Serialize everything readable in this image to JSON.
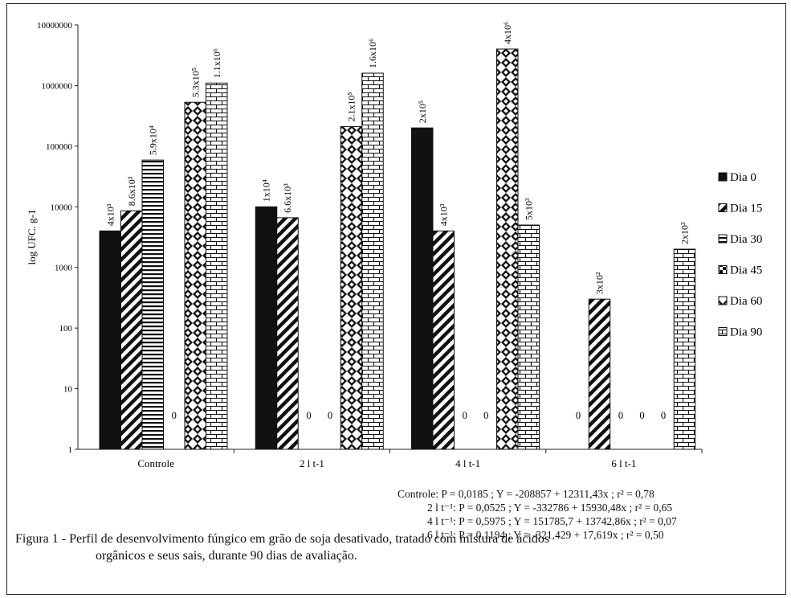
{
  "chart_data": {
    "type": "bar",
    "scale": "log",
    "ylabel": "log UFC. g-1",
    "yticks": [
      "1",
      "10",
      "100",
      "1000",
      "10000",
      "100000",
      "1000000",
      "10000000"
    ],
    "ylim": [
      1,
      10000000
    ],
    "categories": [
      "Controle",
      "2 l t-1",
      "4 l t-1",
      "6 l t-1"
    ],
    "series": [
      {
        "name": "Dia 0",
        "pattern": "solid",
        "values": [
          4000,
          10000,
          200000,
          0
        ],
        "labels": [
          "4x10³",
          "1x10⁴",
          "2x10⁵",
          "0"
        ]
      },
      {
        "name": "Dia 15",
        "pattern": "diag",
        "values": [
          8600,
          6600,
          4000,
          300
        ],
        "labels": [
          "8.6x10³",
          "6.6x10³",
          "4x10³",
          "3x10²"
        ]
      },
      {
        "name": "Dia 30",
        "pattern": "hlines",
        "values": [
          59000,
          0,
          0,
          0
        ],
        "labels": [
          "5.9x10⁴",
          "0",
          "0",
          "0"
        ]
      },
      {
        "name": "Dia 45",
        "pattern": "check",
        "values": [
          0,
          0,
          0,
          0
        ],
        "labels": [
          "0",
          "0",
          "0",
          "0"
        ]
      },
      {
        "name": "Dia 60",
        "pattern": "diamond",
        "values": [
          530000,
          210000,
          4000000,
          0
        ],
        "labels": [
          "5.3x10⁵",
          "2.1x10⁵",
          "4x10⁶",
          "0"
        ]
      },
      {
        "name": "Dia 90",
        "pattern": "brick",
        "values": [
          1100000,
          1600000,
          5000,
          2000
        ],
        "labels": [
          "1.1x10⁶",
          "1.6x10⁶",
          "5x10³",
          "2x10³"
        ]
      }
    ],
    "equations": [
      "Controle: P = 0,0185 ; Y = -208857 + 12311,43x ; r² = 0,78",
      "2 l t⁻¹: P = 0,0525 ; Y = -332786 + 15930,48x ; r² = 0,65",
      "4 l t⁻¹: P = 0,5975 ; Y = 151785,7 + 13742,86x ; r² = 0,07",
      "6 l t⁻¹: P = 0,1194 ; Y = -321,429 + 17,619x ; r² = 0,50"
    ]
  },
  "caption": {
    "line1": "Figura 1 - Perfil de desenvolvimento fúngico em grão de soja desativado, tratado com mistura de ácidos",
    "line2": "orgânicos e seus sais, durante 90 dias de avaliação."
  }
}
